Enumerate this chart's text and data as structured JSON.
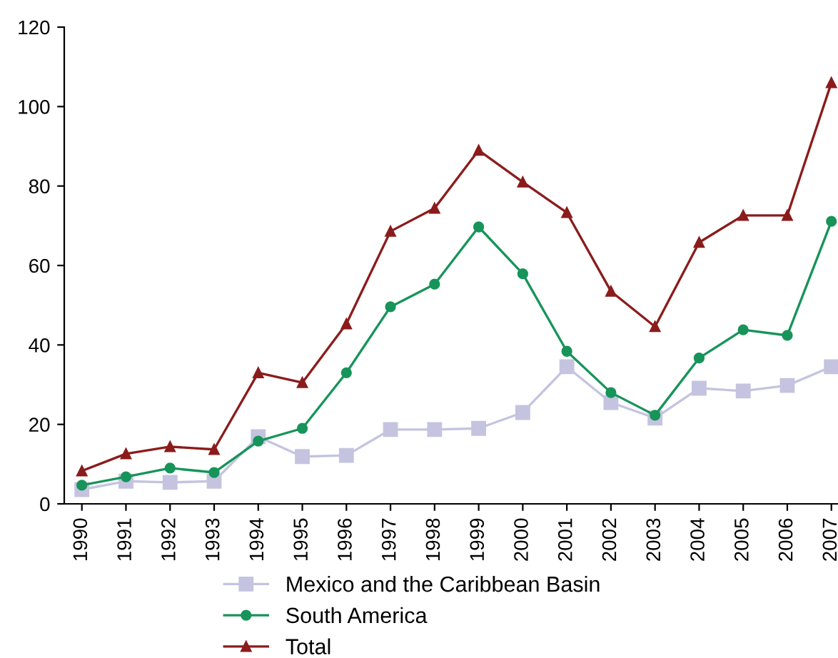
{
  "chart_data": {
    "type": "line",
    "categories": [
      "1990",
      "1991",
      "1992",
      "1993",
      "1994",
      "1995",
      "1996",
      "1997",
      "1998",
      "1999",
      "2000",
      "2001",
      "2002",
      "2003",
      "2004",
      "2005",
      "2006",
      "2007"
    ],
    "series": [
      {
        "name": "Mexico and the Caribbean Basin",
        "color": "#c4c4e0",
        "marker": "square",
        "values": [
          3.6,
          5.7,
          5.4,
          5.7,
          16.9,
          11.9,
          12.2,
          18.7,
          18.7,
          19,
          23,
          34.5,
          25.5,
          21.6,
          29.1,
          28.4,
          29.8,
          34.5
        ]
      },
      {
        "name": "South America",
        "color": "#17945a",
        "marker": "circle",
        "values": [
          4.7,
          6.8,
          9,
          7.9,
          15.8,
          19,
          33,
          49.6,
          55.3,
          69.7,
          57.9,
          38.4,
          28,
          22.3,
          36.7,
          43.8,
          42.4,
          71.1
        ]
      },
      {
        "name": "Total",
        "color": "#8b1c1c",
        "marker": "triangle",
        "values": [
          8.3,
          12.6,
          14.4,
          13.7,
          33,
          30.5,
          45.3,
          68.6,
          74.4,
          89,
          81,
          73.3,
          53.5,
          44.6,
          65.8,
          72.6,
          72.6,
          106
        ]
      }
    ],
    "ylim": [
      0,
      120
    ],
    "yticks": [
      0,
      20,
      40,
      60,
      80,
      100,
      120
    ],
    "grid": false,
    "legend": "bottom",
    "line_style": "solid"
  }
}
